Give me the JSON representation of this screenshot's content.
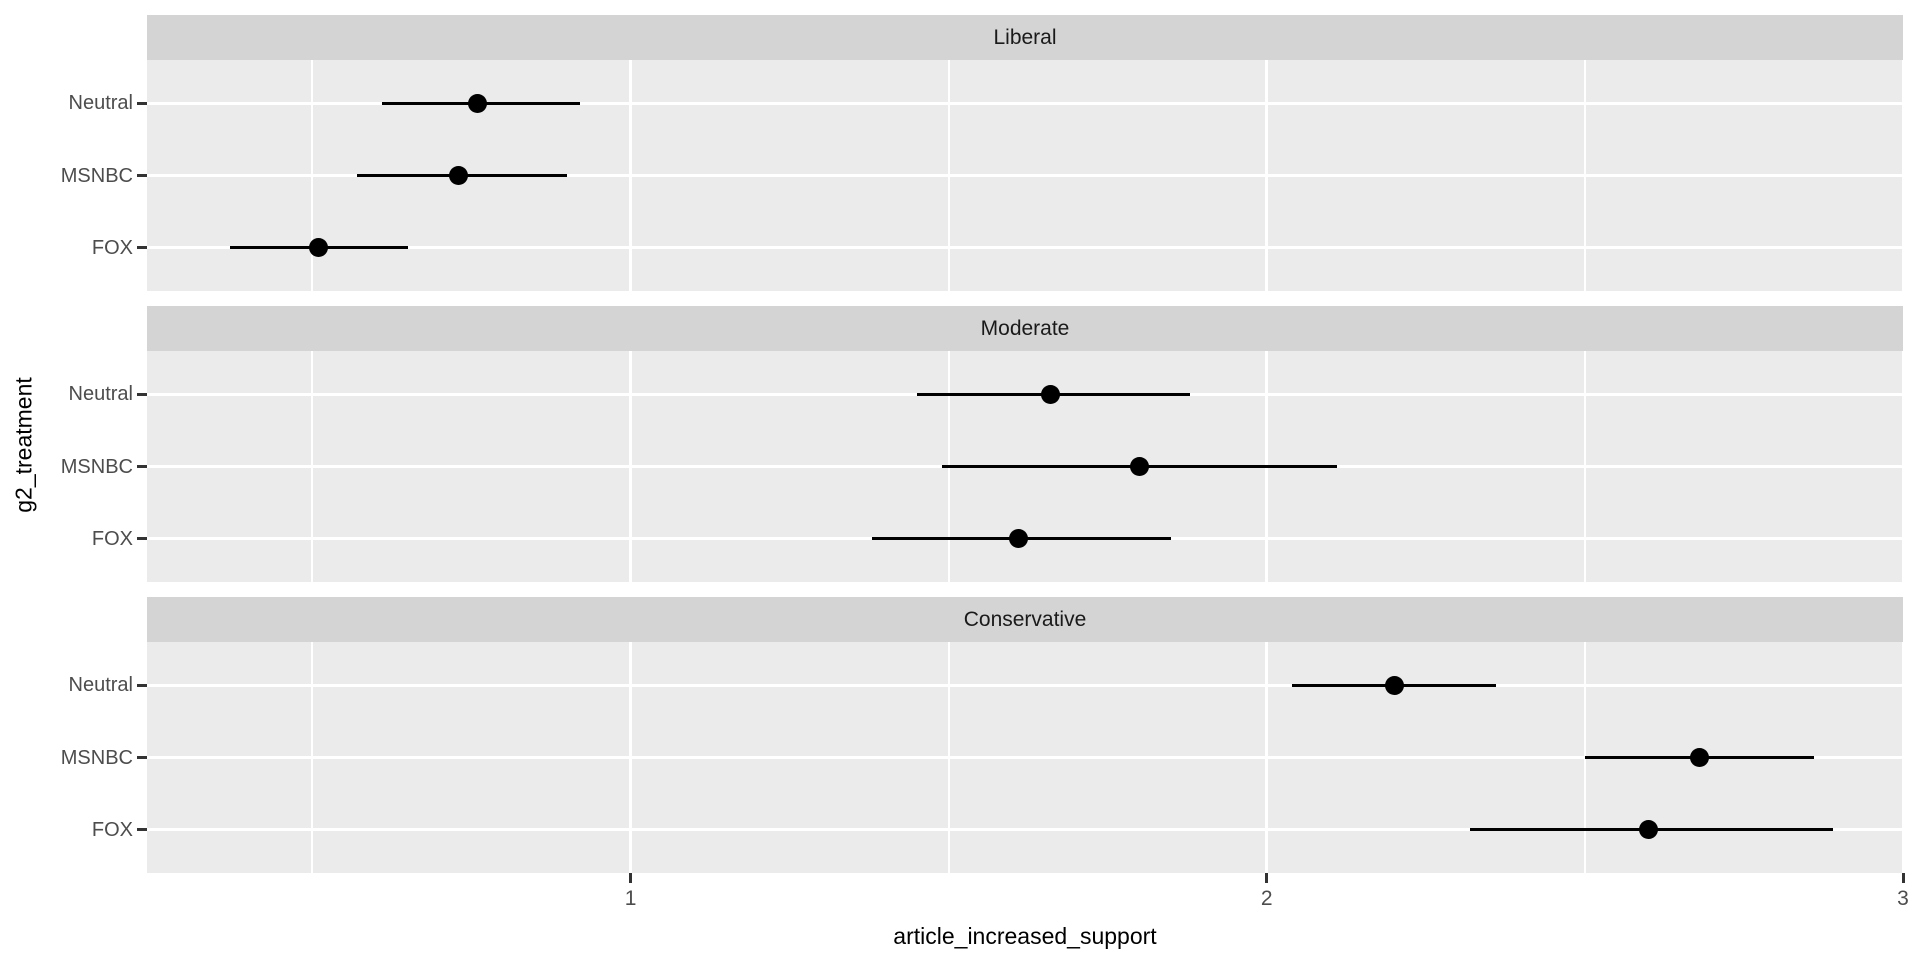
{
  "chart_data": {
    "type": "scatter",
    "subtype": "pointrange-faceted",
    "xlabel": "article_increased_support",
    "ylabel": "g2_treatment",
    "x_ticks": [
      "1",
      "2",
      "3"
    ],
    "x_tick_values": [
      1,
      2,
      3
    ],
    "x_minor_values": [
      0.5,
      1.5,
      2.5
    ],
    "xlim": [
      0.24,
      3.0
    ],
    "y_categories": [
      "Neutral",
      "MSNBC",
      "FOX"
    ],
    "grid": true,
    "legend_position": "none",
    "facets": [
      {
        "label": "Liberal",
        "rows": [
          {
            "category": "Neutral",
            "estimate": 0.76,
            "ci_low": 0.61,
            "ci_high": 0.92
          },
          {
            "category": "MSNBC",
            "estimate": 0.73,
            "ci_low": 0.57,
            "ci_high": 0.9
          },
          {
            "category": "FOX",
            "estimate": 0.51,
            "ci_low": 0.37,
            "ci_high": 0.65
          }
        ]
      },
      {
        "label": "Moderate",
        "rows": [
          {
            "category": "Neutral",
            "estimate": 1.66,
            "ci_low": 1.45,
            "ci_high": 1.88
          },
          {
            "category": "MSNBC",
            "estimate": 1.8,
            "ci_low": 1.49,
            "ci_high": 2.11
          },
          {
            "category": "FOX",
            "estimate": 1.61,
            "ci_low": 1.38,
            "ci_high": 1.85
          }
        ]
      },
      {
        "label": "Conservative",
        "rows": [
          {
            "category": "Neutral",
            "estimate": 2.2,
            "ci_low": 2.04,
            "ci_high": 2.36
          },
          {
            "category": "MSNBC",
            "estimate": 2.68,
            "ci_low": 2.5,
            "ci_high": 2.86
          },
          {
            "category": "FOX",
            "estimate": 2.6,
            "ci_low": 2.32,
            "ci_high": 2.89
          }
        ]
      }
    ]
  },
  "colors": {
    "panel_background": "#ebebeb",
    "strip_background": "#d4d4d4",
    "gridline": "#ffffff",
    "data": "#000000",
    "axis_text": "#4d4d4d",
    "tick_mark": "#333333",
    "strip_text": "#1a1a1a",
    "axis_title": "#000000"
  }
}
